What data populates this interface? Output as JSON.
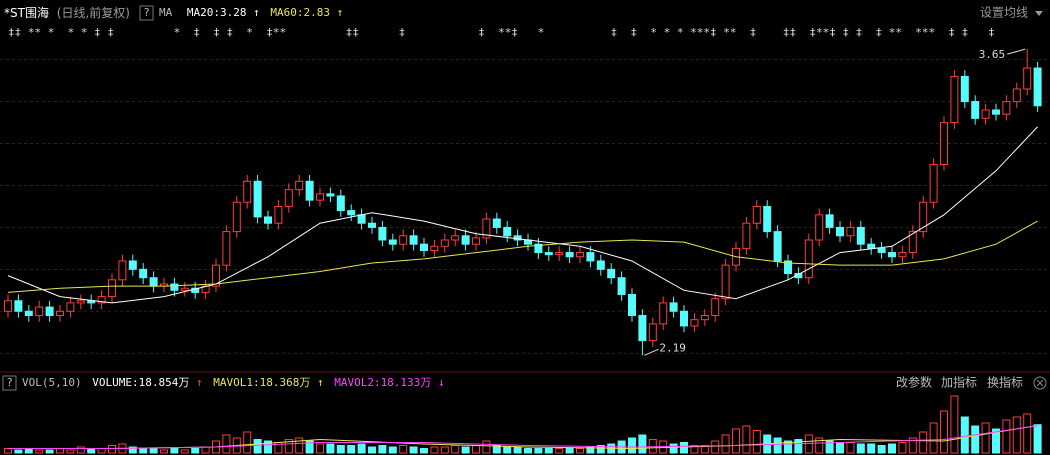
{
  "chart_data": {
    "type": "candlestick",
    "title": "*ST围海",
    "subtitle": "(日线,前复权)",
    "help": "?",
    "settings": "设置均线",
    "markers": "‡‡ ** *  * * ‡ ‡         *  ‡  ‡ ‡  *  ‡**         ‡‡      ‡           ‡  **‡   *          ‡  ‡  * * * ***‡ **  ‡    ‡‡  ‡**‡ ‡ ‡  ‡ **  ***  ‡ ‡   ‡",
    "ylim": [
      2.12,
      3.77
    ],
    "gridlines": [
      2.2,
      2.4,
      2.6,
      2.8,
      3.0,
      3.2,
      3.4,
      3.6
    ],
    "up_color": "#ff3c3c",
    "down_color": "#54fcfc",
    "grid_color": "#4a1414",
    "open": [
      2.4,
      2.45,
      2.4,
      2.38,
      2.42,
      2.38,
      2.4,
      2.44,
      2.45,
      2.44,
      2.47,
      2.55,
      2.64,
      2.6,
      2.56,
      2.52,
      2.53,
      2.5,
      2.51,
      2.49,
      2.52,
      2.62,
      2.78,
      2.92,
      3.02,
      2.85,
      2.82,
      2.9,
      2.98,
      3.02,
      2.93,
      2.96,
      2.95,
      2.88,
      2.86,
      2.82,
      2.8,
      2.74,
      2.72,
      2.76,
      2.72,
      2.69,
      2.71,
      2.74,
      2.76,
      2.72,
      2.75,
      2.84,
      2.8,
      2.76,
      2.74,
      2.72,
      2.68,
      2.67,
      2.68,
      2.66,
      2.68,
      2.64,
      2.6,
      2.56,
      2.48,
      2.38,
      2.26,
      2.34,
      2.44,
      2.4,
      2.33,
      2.36,
      2.38,
      2.46,
      2.62,
      2.7,
      2.82,
      2.9,
      2.78,
      2.64,
      2.58,
      2.56,
      2.74,
      2.86,
      2.8,
      2.76,
      2.8,
      2.72,
      2.7,
      2.68,
      2.66,
      2.68,
      2.78,
      2.92,
      3.1,
      3.3,
      3.52,
      3.4,
      3.32,
      3.36,
      3.34,
      3.4,
      3.46,
      3.56
    ],
    "high": [
      2.48,
      2.48,
      2.43,
      2.45,
      2.45,
      2.43,
      2.47,
      2.48,
      2.48,
      2.5,
      2.58,
      2.67,
      2.67,
      2.63,
      2.59,
      2.56,
      2.56,
      2.54,
      2.54,
      2.55,
      2.65,
      2.81,
      2.95,
      3.05,
      3.05,
      2.88,
      2.93,
      3.01,
      3.05,
      3.05,
      2.99,
      2.99,
      2.98,
      2.91,
      2.89,
      2.85,
      2.83,
      2.77,
      2.79,
      2.79,
      2.75,
      2.74,
      2.77,
      2.79,
      2.79,
      2.78,
      2.87,
      2.87,
      2.83,
      2.79,
      2.77,
      2.75,
      2.71,
      2.71,
      2.71,
      2.71,
      2.71,
      2.67,
      2.63,
      2.59,
      2.51,
      2.41,
      2.37,
      2.47,
      2.47,
      2.43,
      2.39,
      2.41,
      2.49,
      2.65,
      2.73,
      2.85,
      2.93,
      2.93,
      2.81,
      2.67,
      2.61,
      2.77,
      2.89,
      2.89,
      2.83,
      2.83,
      2.83,
      2.75,
      2.73,
      2.71,
      2.71,
      2.81,
      2.95,
      3.13,
      3.33,
      3.55,
      3.55,
      3.43,
      3.39,
      3.39,
      3.43,
      3.49,
      3.65,
      3.59
    ],
    "low": [
      2.37,
      2.37,
      2.35,
      2.35,
      2.35,
      2.35,
      2.37,
      2.41,
      2.41,
      2.41,
      2.44,
      2.52,
      2.57,
      2.53,
      2.49,
      2.49,
      2.47,
      2.47,
      2.46,
      2.46,
      2.49,
      2.59,
      2.75,
      2.89,
      2.82,
      2.79,
      2.79,
      2.87,
      2.95,
      2.9,
      2.9,
      2.92,
      2.85,
      2.83,
      2.79,
      2.77,
      2.71,
      2.69,
      2.69,
      2.69,
      2.66,
      2.66,
      2.68,
      2.71,
      2.69,
      2.69,
      2.72,
      2.77,
      2.73,
      2.71,
      2.69,
      2.65,
      2.64,
      2.64,
      2.63,
      2.63,
      2.61,
      2.57,
      2.53,
      2.45,
      2.35,
      2.19,
      2.23,
      2.31,
      2.37,
      2.3,
      2.3,
      2.33,
      2.35,
      2.43,
      2.59,
      2.67,
      2.79,
      2.75,
      2.61,
      2.55,
      2.53,
      2.53,
      2.71,
      2.77,
      2.73,
      2.73,
      2.69,
      2.67,
      2.65,
      2.63,
      2.63,
      2.65,
      2.75,
      2.89,
      3.07,
      3.27,
      3.37,
      3.29,
      3.29,
      3.31,
      3.31,
      3.37,
      3.43,
      3.35
    ],
    "close": [
      2.45,
      2.4,
      2.38,
      2.42,
      2.38,
      2.4,
      2.44,
      2.45,
      2.44,
      2.47,
      2.55,
      2.64,
      2.6,
      2.56,
      2.52,
      2.53,
      2.5,
      2.51,
      2.49,
      2.52,
      2.62,
      2.78,
      2.92,
      3.02,
      2.85,
      2.82,
      2.9,
      2.98,
      3.02,
      2.93,
      2.96,
      2.95,
      2.88,
      2.86,
      2.82,
      2.8,
      2.74,
      2.72,
      2.76,
      2.72,
      2.69,
      2.71,
      2.74,
      2.76,
      2.72,
      2.75,
      2.84,
      2.8,
      2.76,
      2.74,
      2.72,
      2.68,
      2.67,
      2.68,
      2.66,
      2.68,
      2.64,
      2.6,
      2.56,
      2.48,
      2.38,
      2.26,
      2.34,
      2.44,
      2.4,
      2.33,
      2.36,
      2.38,
      2.46,
      2.62,
      2.7,
      2.82,
      2.9,
      2.78,
      2.64,
      2.58,
      2.56,
      2.74,
      2.86,
      2.8,
      2.76,
      2.8,
      2.72,
      2.7,
      2.68,
      2.66,
      2.68,
      2.78,
      2.92,
      3.1,
      3.3,
      3.52,
      3.4,
      3.32,
      3.36,
      3.34,
      3.4,
      3.46,
      3.56,
      3.38
    ],
    "ma": {
      "label": "MA",
      "series": [
        {
          "name": "MA20:",
          "color": "#ffffff",
          "trend": "↑",
          "x": [
            0,
            5,
            10,
            15,
            20,
            25,
            30,
            35,
            40,
            45,
            50,
            55,
            60,
            65,
            70,
            75,
            80,
            85,
            90,
            95,
            99
          ],
          "values": [
            2.57,
            2.47,
            2.44,
            2.47,
            2.53,
            2.66,
            2.82,
            2.87,
            2.83,
            2.77,
            2.74,
            2.71,
            2.64,
            2.5,
            2.46,
            2.55,
            2.68,
            2.71,
            2.86,
            3.07,
            3.28
          ]
        },
        {
          "name": "MA60:",
          "color": "#e8e84a",
          "trend": "↑",
          "x": [
            0,
            5,
            10,
            15,
            20,
            25,
            30,
            35,
            40,
            45,
            50,
            55,
            60,
            65,
            70,
            75,
            80,
            85,
            90,
            95,
            99
          ],
          "values": [
            2.49,
            2.51,
            2.52,
            2.52,
            2.53,
            2.56,
            2.59,
            2.63,
            2.65,
            2.68,
            2.71,
            2.73,
            2.74,
            2.73,
            2.66,
            2.63,
            2.62,
            2.62,
            2.65,
            2.72,
            2.83
          ]
        }
      ]
    },
    "volume": {
      "label": "VOL(5,10)",
      "name": "VOLUME:",
      "value_label": "18.854万",
      "trend": "↑",
      "ylim": [
        0,
        40
      ],
      "values": [
        3,
        2,
        3,
        2,
        2,
        3,
        2,
        4,
        3,
        3,
        5,
        6,
        4,
        3,
        3,
        2,
        3,
        2,
        3,
        4,
        8,
        12,
        10,
        14,
        9,
        8,
        7,
        9,
        10,
        8,
        6,
        6,
        5,
        5,
        6,
        4,
        5,
        4,
        5,
        4,
        3,
        4,
        4,
        5,
        4,
        5,
        8,
        5,
        4,
        4,
        3,
        3,
        3,
        3,
        3,
        3,
        4,
        5,
        6,
        8,
        10,
        12,
        9,
        8,
        6,
        7,
        5,
        5,
        8,
        12,
        16,
        18,
        15,
        12,
        10,
        8,
        9,
        12,
        10,
        8,
        7,
        7,
        6,
        6,
        5,
        6,
        7,
        10,
        14,
        20,
        28,
        38,
        24,
        18,
        20,
        16,
        22,
        24,
        26,
        18.854
      ],
      "series": [
        {
          "name": "MAVOL1:",
          "color": "#e8e84a",
          "trend": "↑",
          "value_label": "18.368万",
          "x": [
            0,
            10,
            20,
            30,
            40,
            50,
            60,
            70,
            80,
            90,
            99
          ],
          "values": [
            3,
            3,
            4,
            9,
            6,
            4,
            3,
            5,
            9,
            8,
            18.368
          ]
        },
        {
          "name": "MAVOL2:",
          "color": "#ff44ff",
          "trend": "↓",
          "value_label": "18.133万",
          "x": [
            0,
            10,
            20,
            30,
            40,
            50,
            60,
            70,
            80,
            90,
            99
          ],
          "values": [
            3,
            3,
            4,
            7,
            7,
            5,
            4,
            5,
            7,
            9,
            18.133
          ]
        }
      ],
      "controls": [
        "改参数",
        "加指标",
        "换指标"
      ]
    }
  }
}
